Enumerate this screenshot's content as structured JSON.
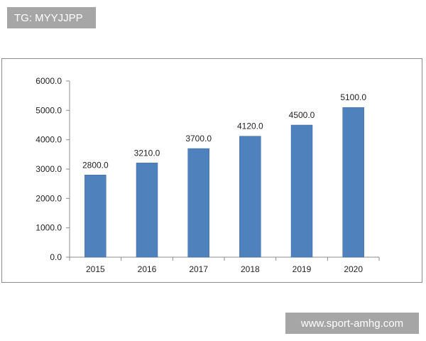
{
  "watermarks": {
    "top": "TG: MYYJJPP",
    "bottom": "www.sport-amhg.com"
  },
  "colors": {
    "bar": "#4f81bd",
    "bar_edge": "#3a6aa3",
    "axis": "#8c8c8c",
    "text": "#222222",
    "watermark_bg": "#a6a6a6"
  },
  "chart_data": {
    "type": "bar",
    "title": "",
    "xlabel": "",
    "ylabel": "",
    "categories": [
      "2015",
      "2016",
      "2017",
      "2018",
      "2019",
      "2020"
    ],
    "values": [
      2800.0,
      3210.0,
      3700.0,
      4120.0,
      4500.0,
      5100.0
    ],
    "data_labels": [
      "2800.0",
      "3210.0",
      "3700.0",
      "4120.0",
      "4500.0",
      "5100.0"
    ],
    "ylim": [
      0,
      6000
    ],
    "yticks": [
      0,
      1000,
      2000,
      3000,
      4000,
      5000,
      6000
    ],
    "ytick_labels": [
      "0.0",
      "1000.0",
      "2000.0",
      "3000.0",
      "4000.0",
      "5000.0",
      "6000.0"
    ],
    "grid": false,
    "legend": "none"
  }
}
